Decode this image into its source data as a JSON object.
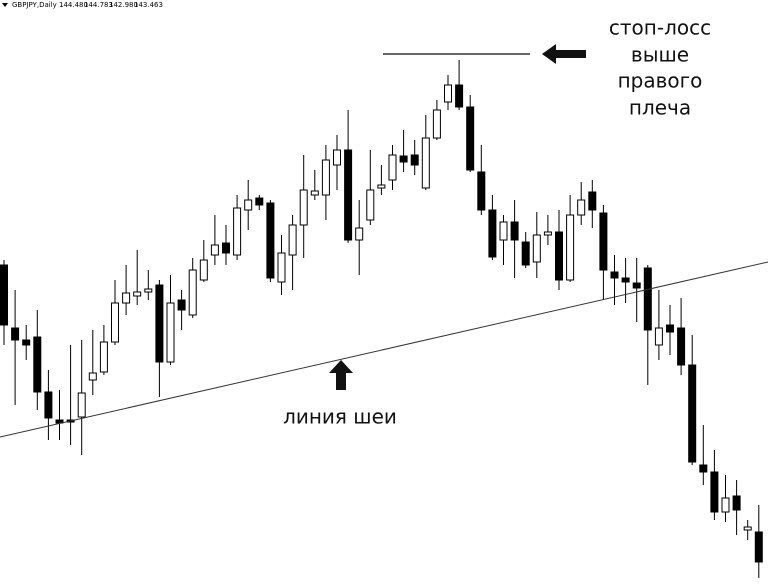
{
  "chart_data": {
    "type": "candlestick",
    "header": {
      "symbol": "GBPJPY,Daily",
      "quote": [
        "144.480",
        "144.783",
        "142.980",
        "143.463"
      ]
    },
    "stop_loss_note": [
      "стоп-лосс",
      "выше",
      "правого",
      "плеча"
    ],
    "neckline_note": "линия шеи",
    "up_color": "#ffffff",
    "down_color": "#000000",
    "ylim": [
      0,
      58.4
    ],
    "open": [
      31.9,
      25.6,
      24.4,
      24.7,
      19.2,
      16.4,
      16.4,
      16.7,
      20.4,
      21.2,
      24.2,
      28.1,
      28.8,
      29.2,
      29.9,
      22.2,
      28.4,
      26.9,
      30.4,
      32.9,
      34.1,
      32.9,
      37.4,
      38.6,
      38.1,
      30.2,
      32.9,
      35.9,
      38.9,
      38.9,
      41.9,
      43.4,
      34.4,
      36.4,
      39.6,
      40.4,
      42.8,
      42.9,
      39.6,
      44.6,
      48.2,
      49.9,
      47.7,
      41.2,
      37.4,
      34.4,
      36.2,
      34.2,
      32.2,
      34.9,
      35.2,
      30.4,
      36.9,
      39.2,
      37.1,
      31.2,
      30.6,
      30.1,
      31.6,
      23.9,
      25.9,
      25.6,
      21.9,
      11.9,
      11.2,
      7.2,
      8.8,
      5.4,
      5.2
    ],
    "high": [
      32.4,
      29.4,
      25.9,
      27.4,
      21.4,
      19.4,
      23.9,
      24.4,
      25.4,
      25.9,
      30.4,
      31.9,
      33.4,
      31.4,
      30.4,
      30.9,
      29.4,
      32.6,
      34.4,
      36.9,
      35.9,
      38.9,
      40.4,
      38.9,
      38.4,
      34.9,
      36.9,
      42.9,
      41.4,
      43.9,
      44.9,
      47.4,
      38.4,
      43.4,
      41.9,
      43.9,
      45.4,
      44.4,
      46.9,
      48.4,
      50.9,
      52.4,
      48.9,
      43.9,
      38.9,
      36.9,
      38.4,
      35.2,
      37.2,
      36.9,
      37.4,
      38.9,
      40.2,
      40.4,
      37.9,
      32.9,
      32.6,
      32.6,
      31.9,
      29.4,
      27.9,
      28.6,
      24.9,
      15.9,
      13.4,
      10.9,
      10.4,
      6.4,
      7.9
    ],
    "low": [
      23.9,
      17.9,
      22.4,
      17.4,
      14.4,
      14.4,
      13.9,
      12.9,
      18.9,
      20.9,
      23.9,
      26.9,
      27.9,
      28.4,
      18.7,
      21.9,
      25.4,
      26.6,
      30.2,
      31.9,
      31.9,
      32.4,
      35.4,
      37.4,
      30.2,
      28.9,
      29.4,
      32.6,
      38.4,
      36.4,
      39.4,
      34.1,
      30.9,
      35.9,
      38.9,
      39.4,
      41.2,
      40.9,
      39.4,
      44.4,
      47.4,
      47.4,
      41.2,
      36.9,
      32.4,
      31.9,
      30.6,
      31.6,
      30.6,
      33.9,
      29.4,
      30.2,
      35.9,
      35.6,
      28.4,
      27.9,
      28.1,
      26.2,
      19.9,
      22.4,
      22.9,
      20.9,
      11.9,
      9.9,
      6.4,
      6.2,
      4.9,
      4.4,
      0.6
    ],
    "close": [
      25.9,
      24.4,
      23.9,
      19.2,
      16.6,
      16.1,
      16.2,
      19.1,
      21.1,
      24.2,
      28.1,
      29.1,
      29.2,
      29.5,
      22.2,
      28.1,
      27.4,
      31.4,
      32.4,
      33.9,
      33.1,
      37.6,
      38.4,
      37.9,
      30.6,
      33.1,
      35.9,
      39.4,
      39.3,
      42.4,
      43.4,
      34.4,
      35.6,
      39.4,
      39.9,
      42.9,
      42.2,
      41.9,
      44.6,
      47.4,
      49.9,
      47.7,
      41.4,
      37.4,
      32.7,
      36.2,
      34.4,
      31.9,
      34.9,
      35.2,
      30.4,
      36.9,
      38.4,
      37.4,
      31.4,
      30.6,
      30.2,
      29.6,
      25.4,
      25.6,
      25.2,
      21.9,
      12.2,
      11.2,
      7.2,
      8.6,
      7.4,
      5.7,
      2.2
    ]
  }
}
